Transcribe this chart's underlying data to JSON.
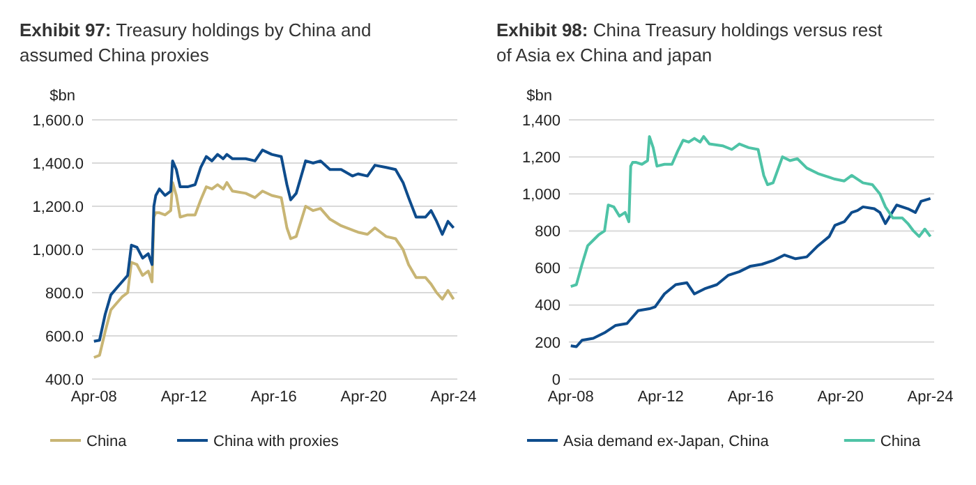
{
  "chart_data": [
    {
      "type": "line",
      "title": "Exhibit 97: Treasury holdings by China and assumed China proxies",
      "ylabel": "$bn",
      "grid": "y",
      "legend": "bottom",
      "marker": "none",
      "line_style": "solid",
      "x": [
        "2008-04",
        "2008-07",
        "2008-10",
        "2009-01",
        "2009-04",
        "2009-07",
        "2009-10",
        "2009-12",
        "2010-03",
        "2010-06",
        "2010-09",
        "2010-11",
        "2010-12",
        "2011-01",
        "2011-03",
        "2011-06",
        "2011-09",
        "2011-10",
        "2011-12",
        "2012-02",
        "2012-06",
        "2012-10",
        "2013-01",
        "2013-04",
        "2013-07",
        "2013-10",
        "2014-01",
        "2014-03",
        "2014-06",
        "2015-01",
        "2015-06",
        "2015-10",
        "2016-03",
        "2016-08",
        "2016-11",
        "2017-01",
        "2017-04",
        "2017-09",
        "2018-01",
        "2018-05",
        "2018-10",
        "2019-04",
        "2019-10",
        "2020-01",
        "2020-06",
        "2020-10",
        "2021-04",
        "2021-09",
        "2022-01",
        "2022-04",
        "2022-08",
        "2023-01",
        "2023-04",
        "2023-07",
        "2023-10",
        "2024-01",
        "2024-04"
      ],
      "xlim": [
        "2008-03",
        "2024-06"
      ],
      "xticks": [
        {
          "value": "2008-04",
          "label": "Apr-08"
        },
        {
          "value": "2012-04",
          "label": "Apr-12"
        },
        {
          "value": "2016-04",
          "label": "Apr-16"
        },
        {
          "value": "2020-04",
          "label": "Apr-20"
        },
        {
          "value": "2024-04",
          "label": "Apr-24"
        }
      ],
      "ylim": [
        400,
        1600
      ],
      "yticks": [
        {
          "value": 400,
          "label": "400.0"
        },
        {
          "value": 600,
          "label": "600.0"
        },
        {
          "value": 800,
          "label": "800.0"
        },
        {
          "value": 1000,
          "label": "1,000.0"
        },
        {
          "value": 1200,
          "label": "1,200.0"
        },
        {
          "value": 1400,
          "label": "1,400.0"
        },
        {
          "value": 1600,
          "label": "1,600.0"
        }
      ],
      "series": [
        {
          "name": "China",
          "color": "#c8b574",
          "values": [
            500,
            510,
            620,
            720,
            750,
            780,
            800,
            940,
            930,
            880,
            900,
            850,
            1150,
            1170,
            1170,
            1160,
            1180,
            1310,
            1250,
            1150,
            1160,
            1160,
            1230,
            1290,
            1280,
            1300,
            1280,
            1310,
            1270,
            1260,
            1240,
            1270,
            1250,
            1240,
            1100,
            1050,
            1060,
            1200,
            1180,
            1190,
            1140,
            1110,
            1090,
            1080,
            1070,
            1100,
            1060,
            1050,
            1000,
            930,
            870,
            870,
            840,
            800,
            770,
            810,
            770
          ]
        },
        {
          "name": "China with proxies",
          "color": "#0e4c8c",
          "values": [
            575,
            580,
            700,
            790,
            820,
            850,
            880,
            1020,
            1010,
            960,
            980,
            930,
            1200,
            1250,
            1280,
            1250,
            1270,
            1410,
            1370,
            1290,
            1290,
            1300,
            1380,
            1430,
            1410,
            1440,
            1420,
            1440,
            1420,
            1420,
            1410,
            1460,
            1440,
            1430,
            1300,
            1230,
            1260,
            1410,
            1400,
            1410,
            1370,
            1370,
            1340,
            1350,
            1340,
            1390,
            1380,
            1370,
            1310,
            1240,
            1150,
            1150,
            1180,
            1130,
            1070,
            1130,
            1100
          ]
        }
      ]
    },
    {
      "type": "line",
      "title": "Exhibit 98: China Treasury holdings versus rest of Asia ex China and japan",
      "ylabel": "$bn",
      "grid": "y",
      "legend": "bottom",
      "marker": "none",
      "line_style": "solid",
      "xlim": [
        "2008-03",
        "2024-06"
      ],
      "xticks": [
        {
          "value": "2008-04",
          "label": "Apr-08"
        },
        {
          "value": "2012-04",
          "label": "Apr-12"
        },
        {
          "value": "2016-04",
          "label": "Apr-16"
        },
        {
          "value": "2020-04",
          "label": "Apr-20"
        },
        {
          "value": "2024-04",
          "label": "Apr-24"
        }
      ],
      "ylim": [
        0,
        1400
      ],
      "yticks": [
        0,
        200,
        400,
        600,
        800,
        {
          "value": 1000,
          "label": "1,000"
        },
        {
          "value": 1200,
          "label": "1,200"
        },
        {
          "value": 1400,
          "label": "1,400"
        }
      ],
      "series": [
        {
          "name": "Asia demand ex-Japan, China",
          "color": "#0e4c8c",
          "x": [
            "2008-04",
            "2008-07",
            "2008-10",
            "2009-04",
            "2009-10",
            "2010-04",
            "2010-10",
            "2011-04",
            "2011-10",
            "2012-01",
            "2012-06",
            "2012-12",
            "2013-06",
            "2013-10",
            "2014-04",
            "2014-10",
            "2015-04",
            "2015-10",
            "2016-04",
            "2016-10",
            "2017-04",
            "2017-10",
            "2018-04",
            "2018-10",
            "2019-04",
            "2019-10",
            "2020-01",
            "2020-06",
            "2020-10",
            "2021-01",
            "2021-04",
            "2021-10",
            "2022-01",
            "2022-04",
            "2022-07",
            "2022-10",
            "2023-04",
            "2023-08",
            "2023-11",
            "2024-04"
          ],
          "values": [
            180,
            175,
            210,
            220,
            250,
            290,
            300,
            370,
            380,
            390,
            460,
            510,
            520,
            460,
            490,
            510,
            560,
            580,
            610,
            620,
            640,
            670,
            650,
            660,
            720,
            770,
            830,
            850,
            900,
            910,
            930,
            920,
            900,
            840,
            890,
            940,
            920,
            900,
            960,
            975
          ]
        },
        {
          "name": "China",
          "color": "#4ec3a6",
          "x": [
            "2008-04",
            "2008-07",
            "2008-10",
            "2009-01",
            "2009-04",
            "2009-07",
            "2009-10",
            "2009-12",
            "2010-03",
            "2010-06",
            "2010-09",
            "2010-11",
            "2010-12",
            "2011-01",
            "2011-03",
            "2011-06",
            "2011-09",
            "2011-10",
            "2011-12",
            "2012-02",
            "2012-06",
            "2012-10",
            "2013-01",
            "2013-04",
            "2013-07",
            "2013-10",
            "2014-01",
            "2014-03",
            "2014-06",
            "2015-01",
            "2015-06",
            "2015-10",
            "2016-03",
            "2016-08",
            "2016-11",
            "2017-01",
            "2017-04",
            "2017-09",
            "2018-01",
            "2018-05",
            "2018-10",
            "2019-04",
            "2019-10",
            "2020-01",
            "2020-06",
            "2020-10",
            "2021-04",
            "2021-09",
            "2022-01",
            "2022-04",
            "2022-08",
            "2023-01",
            "2023-04",
            "2023-07",
            "2023-10",
            "2024-01",
            "2024-04"
          ],
          "values": [
            500,
            510,
            620,
            720,
            750,
            780,
            800,
            940,
            930,
            880,
            900,
            850,
            1150,
            1170,
            1170,
            1160,
            1180,
            1310,
            1250,
            1150,
            1160,
            1160,
            1230,
            1290,
            1280,
            1300,
            1280,
            1310,
            1270,
            1260,
            1240,
            1270,
            1250,
            1240,
            1100,
            1050,
            1060,
            1200,
            1180,
            1190,
            1140,
            1110,
            1090,
            1080,
            1070,
            1100,
            1060,
            1050,
            1000,
            930,
            870,
            870,
            840,
            800,
            770,
            810,
            770
          ]
        }
      ]
    }
  ]
}
